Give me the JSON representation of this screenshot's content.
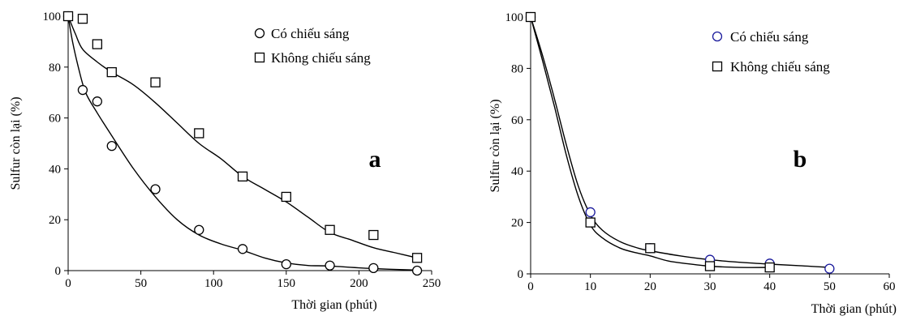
{
  "chart_data": [
    {
      "type": "scatter",
      "panel_label": "a",
      "xlabel": "Thời gian (phút)",
      "ylabel": "Sulfur còn lại (%)",
      "xlim": [
        0,
        250
      ],
      "ylim": [
        0,
        100
      ],
      "x_ticks": [
        "0",
        "50",
        "100",
        "150",
        "200",
        "250"
      ],
      "y_ticks": [
        "0",
        "20",
        "40",
        "60",
        "80",
        "100"
      ],
      "grid": false,
      "legend": "top-right",
      "series": [
        {
          "name": "Có chiếu sáng",
          "marker": "circle",
          "points": [
            [
              0,
              100
            ],
            [
              10,
              71
            ],
            [
              20,
              66.5
            ],
            [
              30,
              49
            ],
            [
              60,
              32
            ],
            [
              90,
              16
            ],
            [
              120,
              8.5
            ],
            [
              150,
              2.5
            ],
            [
              180,
              2
            ],
            [
              210,
              1
            ],
            [
              240,
              0
            ]
          ],
          "trend": [
            [
              0,
              100
            ],
            [
              3,
              90
            ],
            [
              7,
              80
            ],
            [
              12,
              70
            ],
            [
              20,
              62
            ],
            [
              30,
              53
            ],
            [
              45,
              40
            ],
            [
              60,
              29
            ],
            [
              75,
              20
            ],
            [
              90,
              14
            ],
            [
              105,
              10.5
            ],
            [
              120,
              8
            ],
            [
              135,
              5
            ],
            [
              150,
              3
            ],
            [
              165,
              2
            ],
            [
              180,
              1.8
            ],
            [
              210,
              0.8
            ],
            [
              240,
              0.2
            ]
          ]
        },
        {
          "name": "Không chiếu sáng",
          "marker": "square",
          "points": [
            [
              0,
              100
            ],
            [
              10,
              99
            ],
            [
              20,
              89
            ],
            [
              30,
              78
            ],
            [
              60,
              74
            ],
            [
              90,
              54
            ],
            [
              120,
              37
            ],
            [
              150,
              29
            ],
            [
              180,
              16
            ],
            [
              210,
              14
            ],
            [
              240,
              5
            ]
          ],
          "trend": [
            [
              0,
              100
            ],
            [
              5,
              93
            ],
            [
              10,
              87
            ],
            [
              20,
              82
            ],
            [
              30,
              78
            ],
            [
              45,
              73
            ],
            [
              60,
              66
            ],
            [
              75,
              58
            ],
            [
              90,
              50
            ],
            [
              105,
              44
            ],
            [
              120,
              37
            ],
            [
              135,
              32
            ],
            [
              150,
              27
            ],
            [
              165,
              21
            ],
            [
              180,
              15
            ],
            [
              195,
              12
            ],
            [
              210,
              9
            ],
            [
              225,
              7
            ],
            [
              240,
              5
            ]
          ]
        }
      ]
    },
    {
      "type": "scatter",
      "panel_label": "b",
      "xlabel": "Thời gian (phút)",
      "ylabel": "Sulfur còn lại (%)",
      "xlim": [
        0,
        60
      ],
      "ylim": [
        0,
        100
      ],
      "x_ticks": [
        "0",
        "10",
        "20",
        "30",
        "40",
        "50",
        "60"
      ],
      "y_ticks": [
        "0",
        "20",
        "40",
        "60",
        "80",
        "100"
      ],
      "grid": false,
      "legend": "top-right",
      "series": [
        {
          "name": "Có chiếu sáng",
          "marker": "circle",
          "marker_color": "#1a1a9c",
          "points": [
            [
              0,
              100
            ],
            [
              10,
              24
            ],
            [
              20,
              10
            ],
            [
              30,
              5.5
            ],
            [
              40,
              4
            ],
            [
              50,
              2
            ]
          ],
          "trend": [
            [
              0,
              100
            ],
            [
              2,
              85
            ],
            [
              4,
              68
            ],
            [
              6,
              50
            ],
            [
              8,
              34
            ],
            [
              10,
              23
            ],
            [
              12,
              17
            ],
            [
              15,
              12.5
            ],
            [
              18,
              10
            ],
            [
              20,
              9
            ],
            [
              25,
              7
            ],
            [
              30,
              5.5
            ],
            [
              35,
              4.5
            ],
            [
              40,
              3.8
            ],
            [
              45,
              3.2
            ],
            [
              50,
              2.5
            ]
          ]
        },
        {
          "name": "Không chiếu sáng",
          "marker": "square",
          "points": [
            [
              0,
              100
            ],
            [
              10,
              20
            ],
            [
              20,
              10
            ],
            [
              30,
              3
            ],
            [
              40,
              2.5
            ]
          ],
          "trend": [
            [
              0,
              100
            ],
            [
              2,
              83
            ],
            [
              4,
              65
            ],
            [
              6,
              46
            ],
            [
              8,
              30
            ],
            [
              10,
              19
            ],
            [
              12,
              14
            ],
            [
              15,
              10
            ],
            [
              18,
              8
            ],
            [
              20,
              7
            ],
            [
              23,
              5
            ],
            [
              26,
              4
            ],
            [
              30,
              3
            ],
            [
              35,
              2.5
            ],
            [
              40,
              2.5
            ]
          ]
        }
      ]
    }
  ]
}
